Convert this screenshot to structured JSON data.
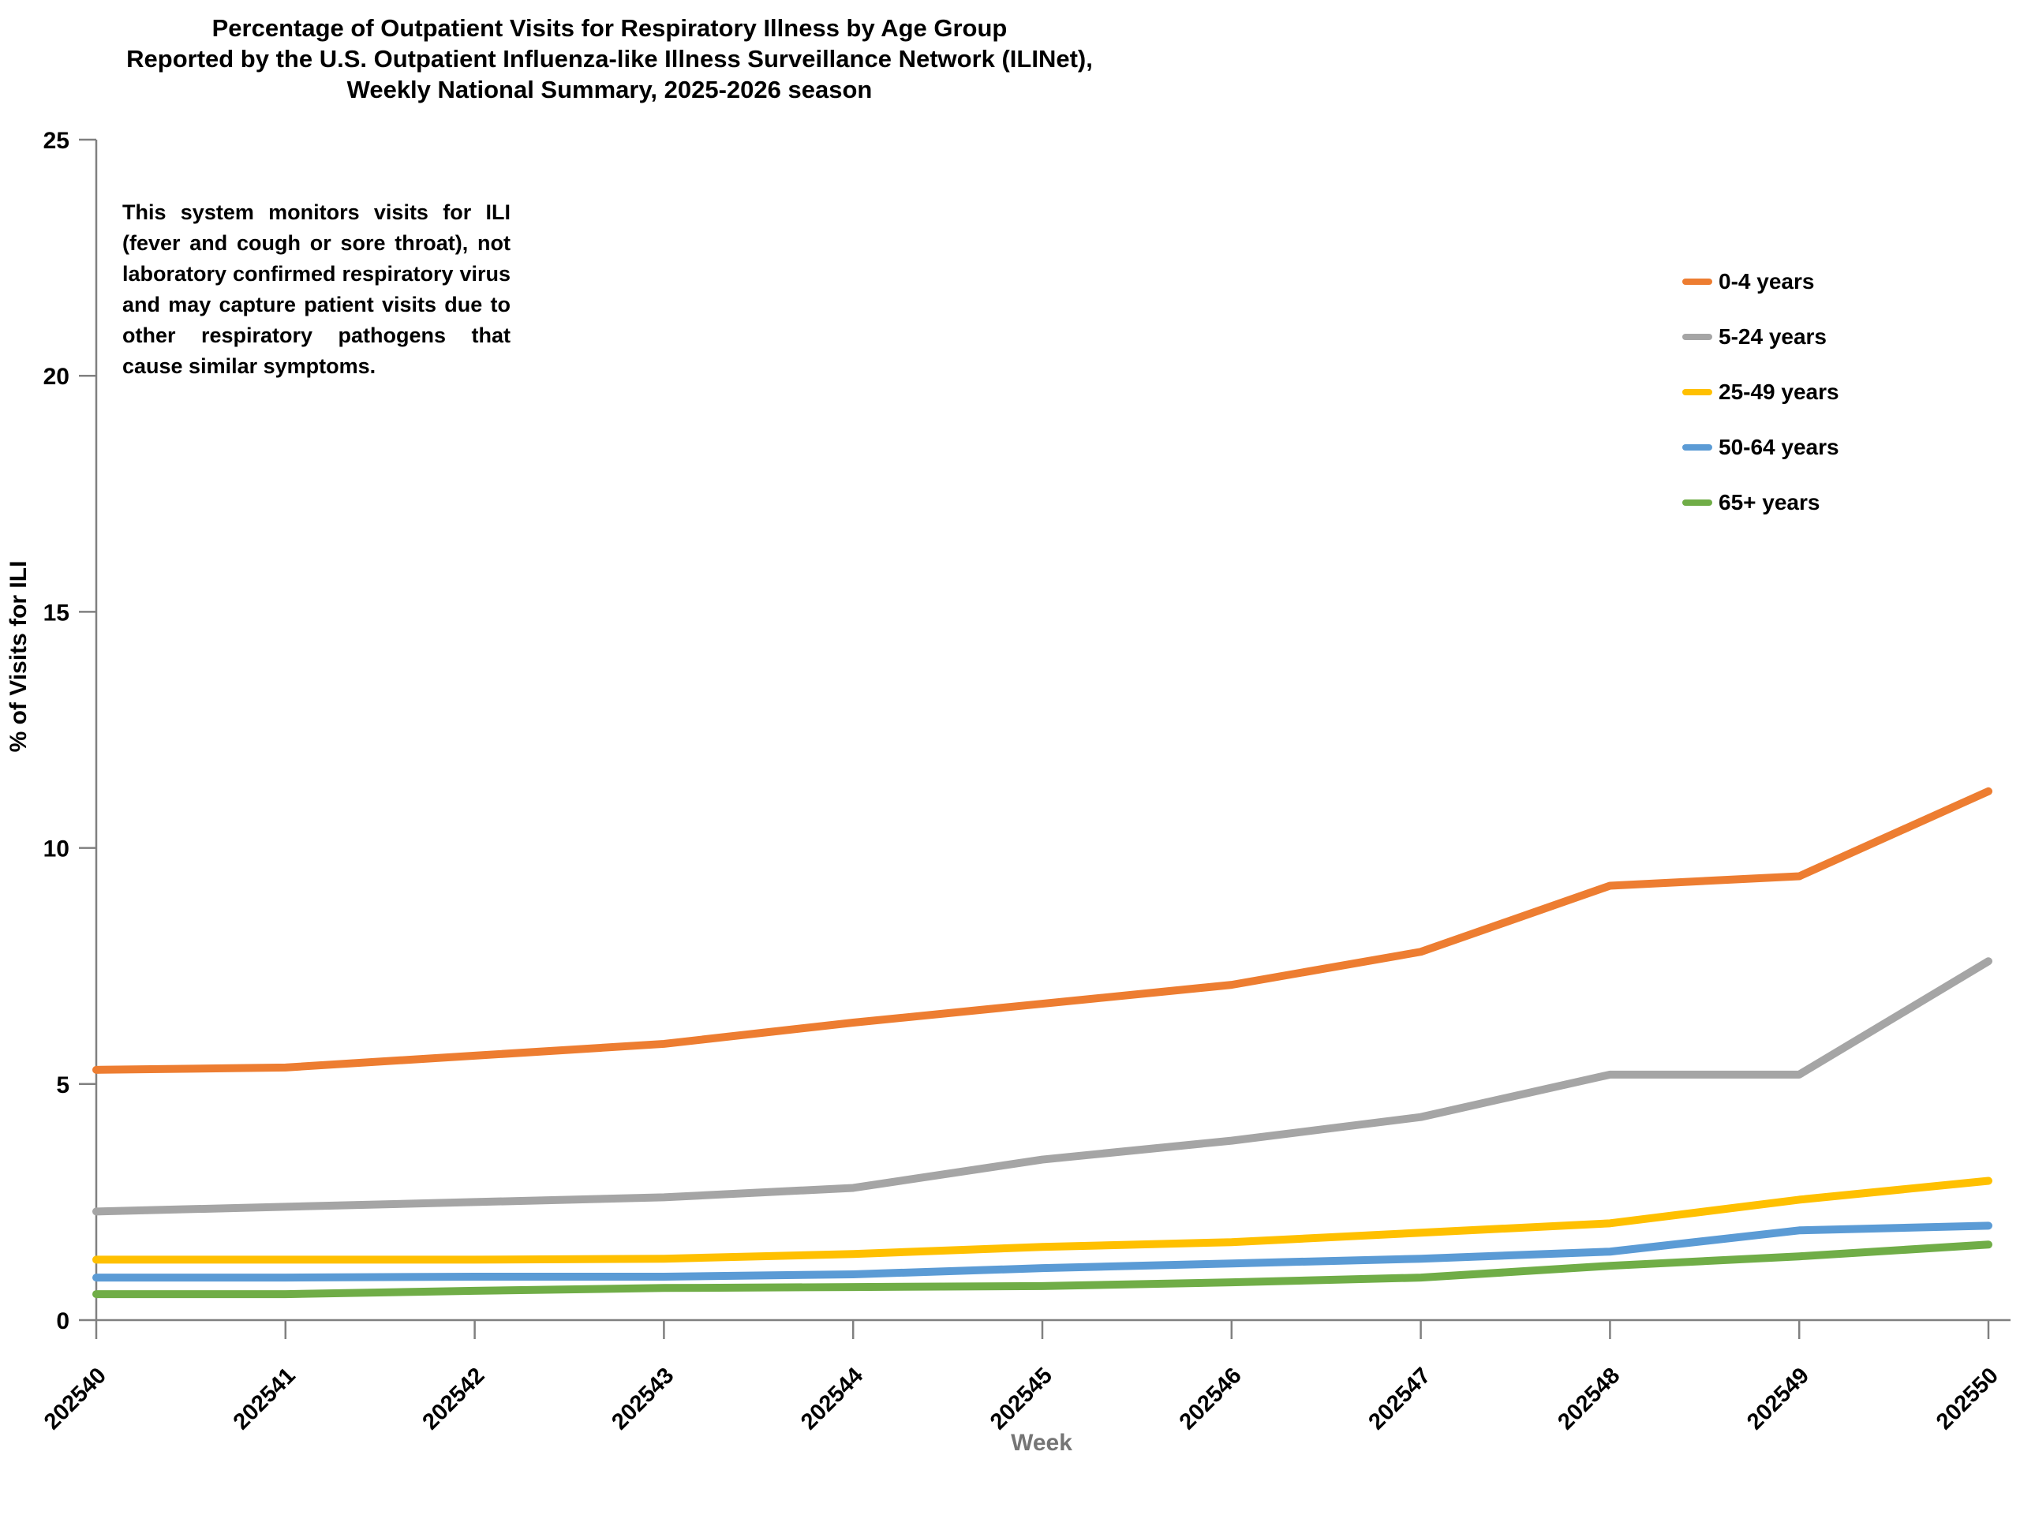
{
  "title": {
    "line1": "Percentage of Outpatient Visits for Respiratory Illness by Age Group",
    "line2": "Reported by the U.S. Outpatient Influenza-like Illness Surveillance Network (ILINet),",
    "line3": "Weekly National Summary, 2025-2026 season"
  },
  "annotation": "This system monitors visits for ILI (fever and cough or sore throat), not laboratory confirmed respiratory virus and may capture patient visits due to other respiratory pathogens that cause similar symptoms.",
  "chart_data": {
    "type": "line",
    "title": "Percentage of Outpatient Visits for Respiratory Illness by Age Group Reported by the U.S. Outpatient Influenza-like Illness Surveillance Network (ILINet), Weekly National Summary, 2025-2026 season",
    "xlabel": "Week",
    "ylabel": "% of Visits for ILI",
    "ylim": [
      0,
      25
    ],
    "yticks": [
      0,
      5,
      10,
      15,
      20,
      25
    ],
    "grid": false,
    "legend_position": "upper-right",
    "categories": [
      "202540",
      "202541",
      "202542",
      "202543",
      "202544",
      "202545",
      "202546",
      "202547",
      "202548",
      "202549",
      "202550"
    ],
    "series": [
      {
        "name": "0-4 years",
        "color": "#ED7D31",
        "values": [
          5.3,
          5.35,
          5.6,
          5.85,
          6.3,
          6.7,
          7.1,
          7.8,
          9.2,
          9.4,
          11.2
        ]
      },
      {
        "name": "5-24 years",
        "color": "#A5A5A5",
        "values": [
          2.3,
          2.4,
          2.5,
          2.6,
          2.8,
          3.4,
          3.8,
          4.3,
          5.2,
          5.2,
          7.6
        ]
      },
      {
        "name": "25-49 years",
        "color": "#FFC000",
        "values": [
          1.28,
          1.28,
          1.28,
          1.3,
          1.4,
          1.55,
          1.65,
          1.85,
          2.05,
          2.55,
          2.95
        ]
      },
      {
        "name": "50-64 years",
        "color": "#5B9BD5",
        "values": [
          0.9,
          0.9,
          0.92,
          0.92,
          0.97,
          1.1,
          1.2,
          1.3,
          1.45,
          1.9,
          2.0
        ]
      },
      {
        "name": "65+ years",
        "color": "#70AD47",
        "values": [
          0.55,
          0.55,
          0.62,
          0.68,
          0.7,
          0.72,
          0.8,
          0.9,
          1.15,
          1.35,
          1.6
        ]
      }
    ]
  },
  "colors": {
    "axis": "#808080",
    "tick_label": "#000000",
    "x_axis_title": "#757575"
  }
}
